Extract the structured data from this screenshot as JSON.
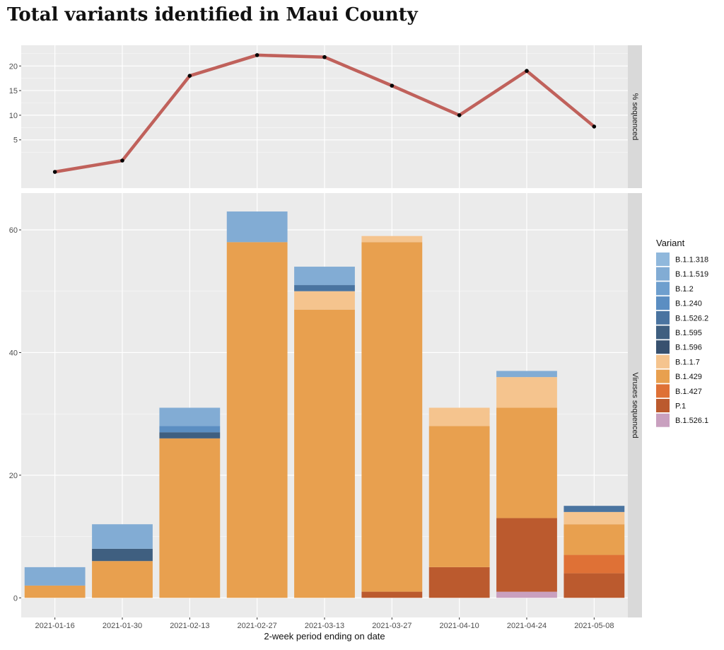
{
  "title": "Total variants identified in Maui County",
  "xlabel": "2-week period ending on date",
  "colors": {
    "panel_bg": "#ebebeb",
    "strip_bg": "#d9d9d9",
    "grid": "#ffffff",
    "line": "#c0615b",
    "point": "#000000"
  },
  "chart_data": [
    {
      "type": "line",
      "facet_label": "% sequenced",
      "x": [
        "2021-01-16",
        "2021-01-30",
        "2021-02-13",
        "2021-02-27",
        "2021-03-13",
        "2021-03-27",
        "2021-04-10",
        "2021-04-24",
        "2021-05-08"
      ],
      "y": [
        -1.5,
        0.8,
        18.0,
        22.2,
        21.8,
        16.0,
        10.0,
        19.0,
        7.7
      ],
      "yticks": [
        5,
        10,
        15,
        20
      ],
      "ylim": [
        -4.8,
        24.2
      ],
      "grid": true
    },
    {
      "type": "bar",
      "stacked": true,
      "facet_label": "Viruses sequenced",
      "categories": [
        "2021-01-16",
        "2021-01-30",
        "2021-02-13",
        "2021-02-27",
        "2021-03-13",
        "2021-03-27",
        "2021-04-10",
        "2021-04-24",
        "2021-05-08"
      ],
      "yticks": [
        0,
        20,
        40,
        60
      ],
      "ylim": [
        -3.2,
        66
      ],
      "grid": true,
      "legend_title": "Variant",
      "legend_position": "right",
      "series": [
        {
          "name": "B.1.1.318",
          "color": "#90b8dc",
          "values": [
            0,
            0,
            0,
            0,
            0,
            0,
            0,
            0,
            0
          ]
        },
        {
          "name": "B.1.1.519",
          "color": "#82acd4",
          "values": [
            3,
            4,
            3,
            5,
            3,
            0,
            0,
            1,
            0
          ]
        },
        {
          "name": "B.1.2",
          "color": "#6e9fce",
          "values": [
            0,
            0,
            0,
            0,
            0,
            0,
            0,
            0,
            0
          ]
        },
        {
          "name": "B.1.240",
          "color": "#5b8ec2",
          "values": [
            0,
            0,
            1,
            0,
            0,
            0,
            0,
            0,
            0
          ]
        },
        {
          "name": "B.1.526.2",
          "color": "#4a74a0",
          "values": [
            0,
            0,
            0,
            0,
            1,
            0,
            0,
            0,
            1
          ]
        },
        {
          "name": "B.1.595",
          "color": "#3f5f80",
          "values": [
            0,
            2,
            1,
            0,
            0,
            0,
            0,
            0,
            0
          ]
        },
        {
          "name": "B.1.596",
          "color": "#38516f",
          "values": [
            0,
            0,
            0,
            0,
            0,
            0,
            0,
            0,
            0
          ]
        },
        {
          "name": "B.1.1.7",
          "color": "#f5c48e",
          "values": [
            0,
            0,
            0,
            0,
            3,
            1,
            3,
            5,
            2
          ]
        },
        {
          "name": "B.1.429",
          "color": "#e8a04f",
          "values": [
            2,
            6,
            26,
            58,
            47,
            57,
            23,
            18,
            5
          ]
        },
        {
          "name": "B.1.427",
          "color": "#df7136",
          "values": [
            0,
            0,
            0,
            0,
            0,
            0,
            0,
            0,
            3
          ]
        },
        {
          "name": "P.1",
          "color": "#bb5a2e",
          "values": [
            0,
            0,
            0,
            0,
            0,
            1,
            5,
            12,
            4
          ]
        },
        {
          "name": "B.1.526.1",
          "color": "#c9a0bf",
          "values": [
            0,
            0,
            0,
            0,
            0,
            0,
            0,
            1,
            0
          ]
        }
      ]
    }
  ]
}
